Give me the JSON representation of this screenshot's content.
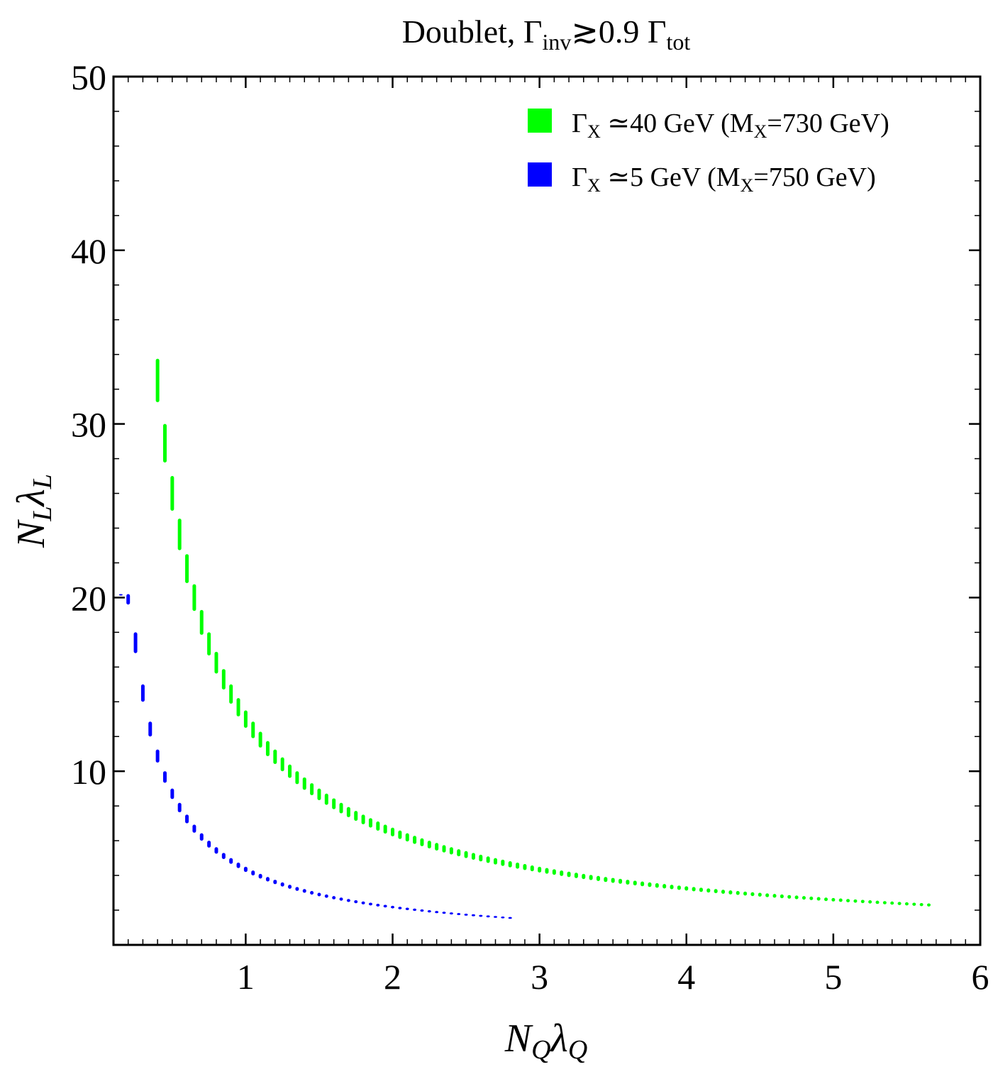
{
  "chart_data": {
    "type": "bar",
    "title": {
      "base": "Doublet, Γ",
      "sub1": "inv",
      "mid": "≳0.9 Γ",
      "sub2": "tot"
    },
    "xlabel": {
      "base1": "N",
      "sub1": "Q",
      "base2": "λ",
      "sub2": "Q"
    },
    "ylabel": {
      "base1": "N",
      "sub1": "L",
      "base2": "λ",
      "sub2": "L"
    },
    "xlim": [
      0.1,
      6.0
    ],
    "ylim": [
      0,
      50
    ],
    "x_ticks": [
      "1",
      "2",
      "3",
      "4",
      "5",
      "6"
    ],
    "y_ticks": [
      "10",
      "20",
      "30",
      "40",
      "50"
    ],
    "grid": false,
    "legend_position": "top-right",
    "series": [
      {
        "name": {
          "pre": "Γ",
          "sub": "X",
          "post": " ≃40 GeV (M",
          "sub2": "X",
          "post2": "=730 GeV)"
        },
        "color": "#00ff00",
        "x_start": 0.4,
        "x_end": 5.67,
        "x_step": 0.05,
        "upper_product": 13.5,
        "lower_product": 12.5,
        "y_cap": 41.3,
        "y_floor": 0
      },
      {
        "name": {
          "pre": "Γ",
          "sub": "X",
          "post": " ≃5 GeV (M",
          "sub2": "X",
          "post2": "=750 GeV)"
        },
        "color": "#0000ff",
        "x_start": 0.15,
        "x_end": 2.82,
        "x_step": 0.05,
        "upper_product": 4.5,
        "lower_product": 4.2,
        "y_cap": 20.2,
        "y_floor": 0
      }
    ]
  }
}
